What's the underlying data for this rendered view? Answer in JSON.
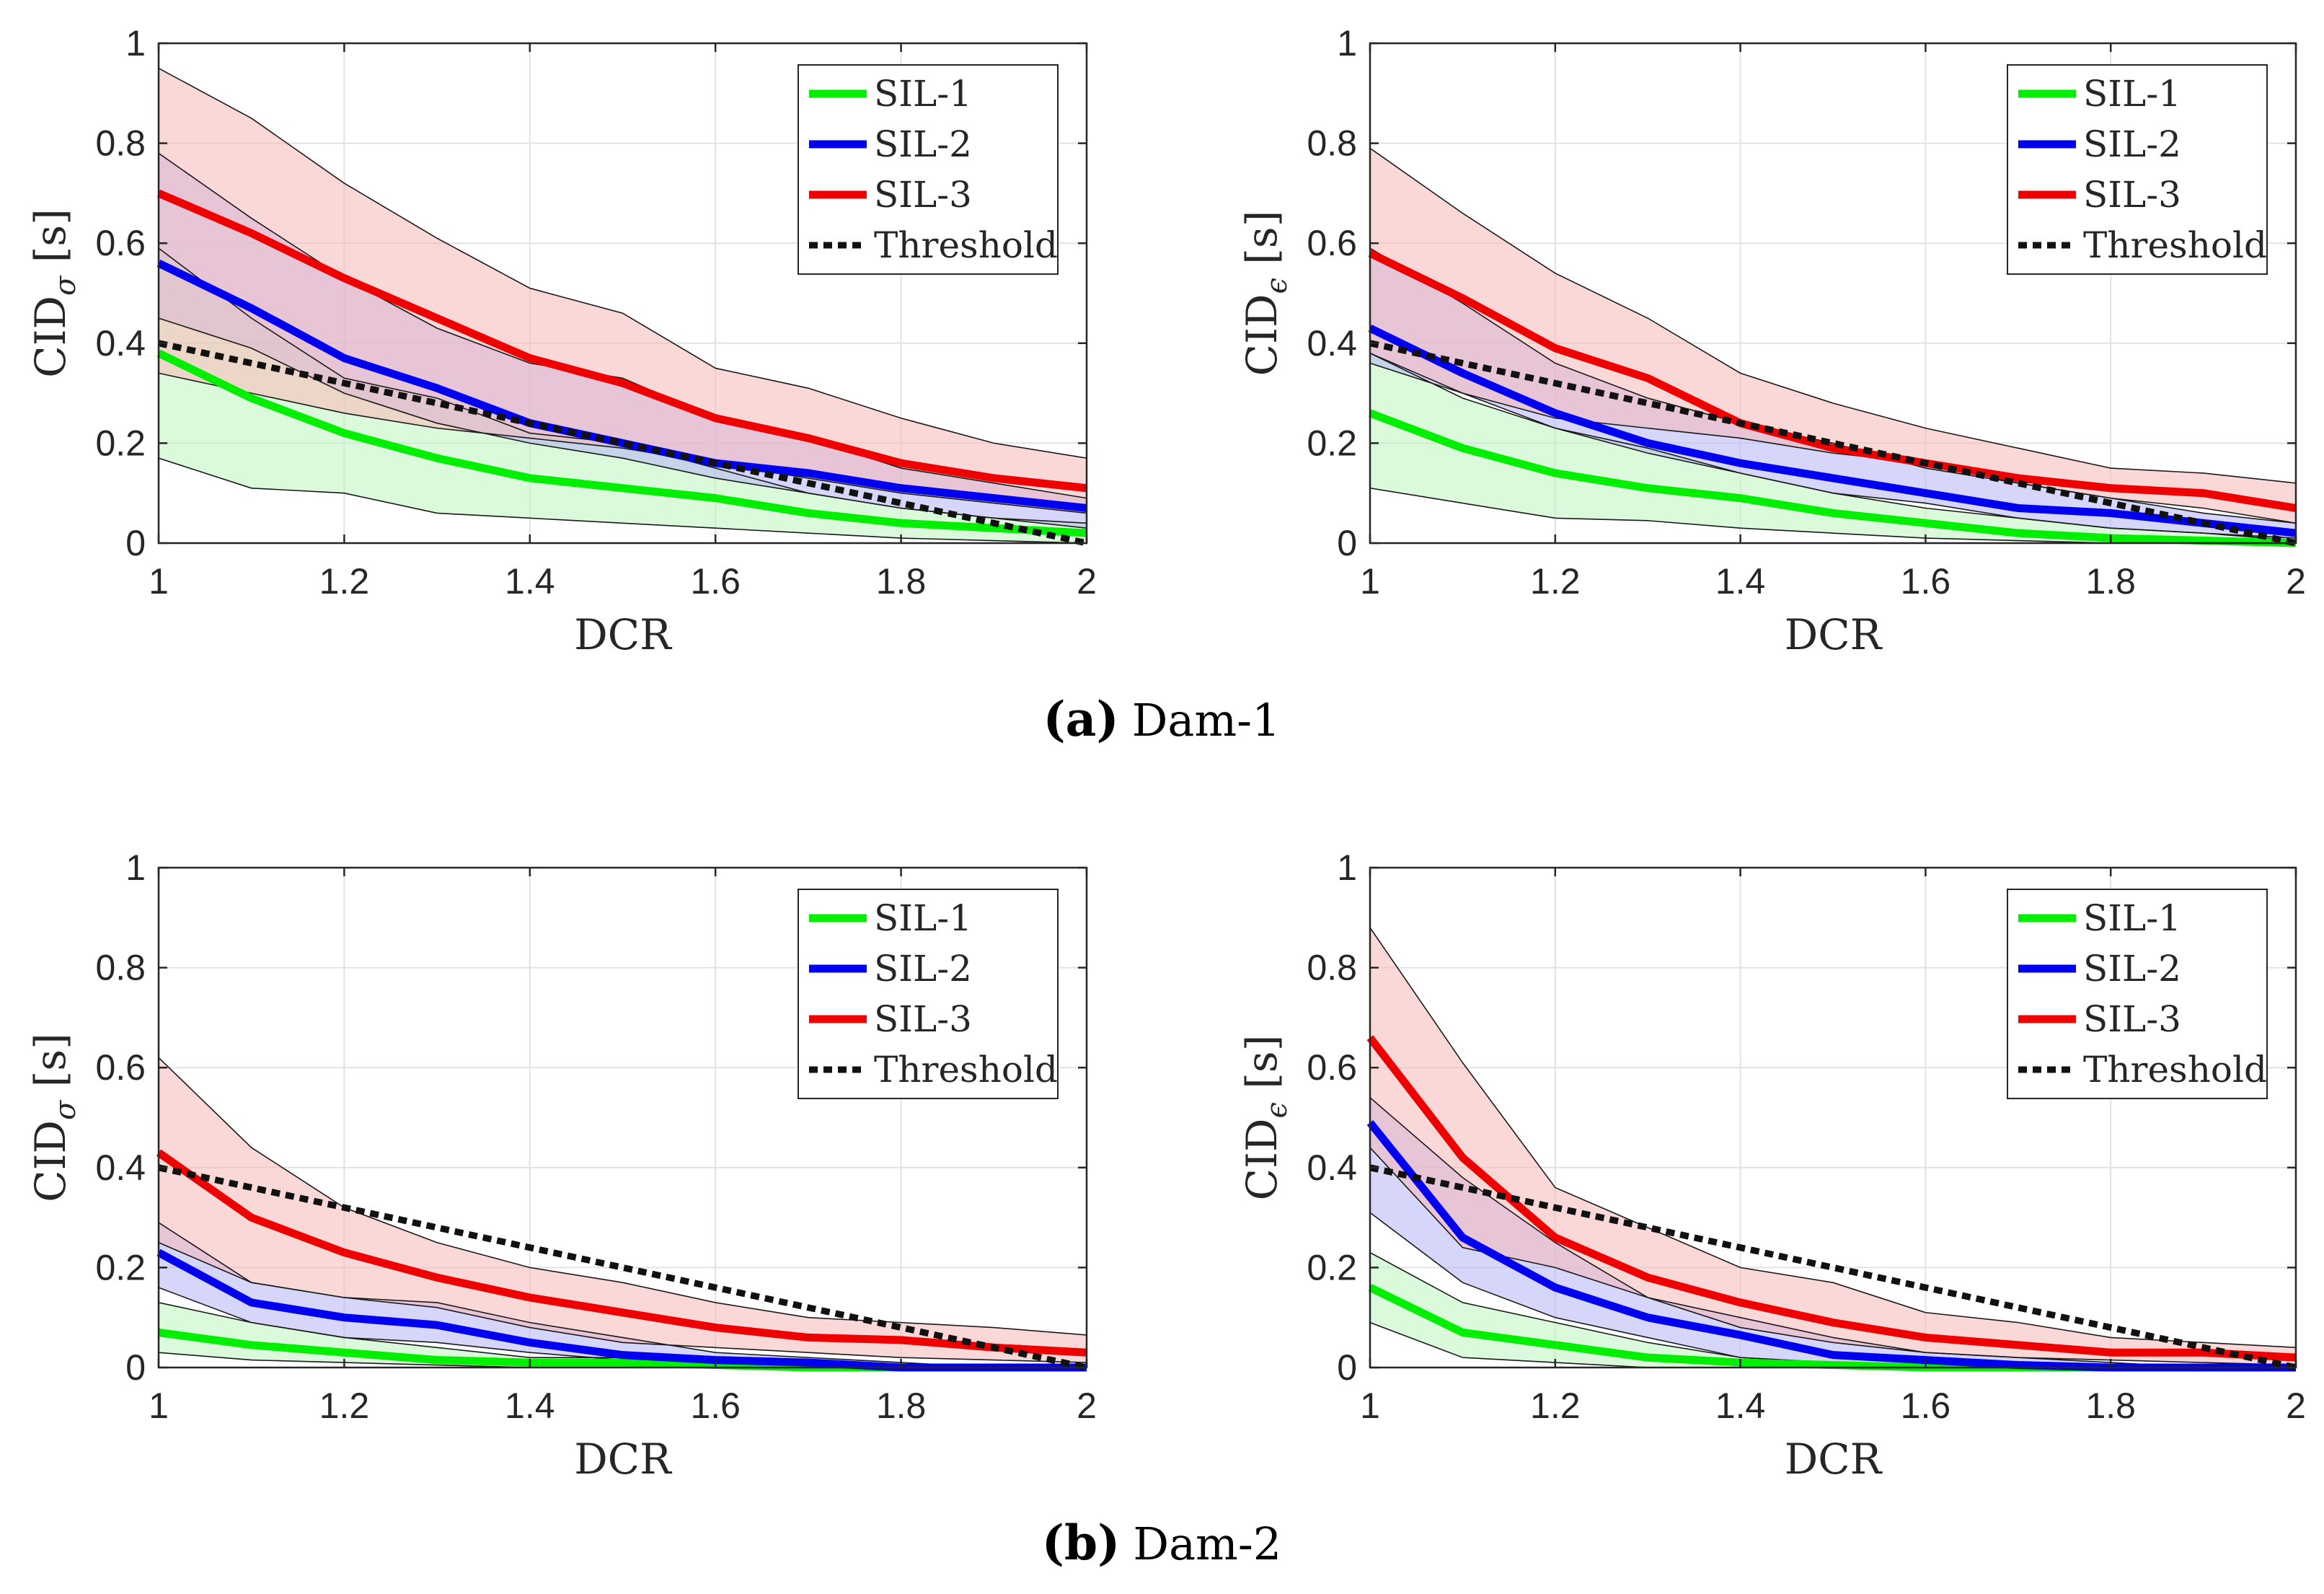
{
  "captions": [
    {
      "label": "(a)",
      "text": "Dam-1"
    },
    {
      "label": "(b)",
      "text": "Dam-2"
    }
  ],
  "colors": {
    "SIL-1": "#00ee00",
    "SIL-2": "#0000ee",
    "SIL-3": "#ee0000",
    "Threshold": "#111111",
    "fill_SIL-1": "#bdf5bd",
    "fill_SIL-2": "#b4b4f5",
    "fill_SIL-3": "#f8b8b8"
  },
  "chart_data": [
    {
      "type": "line",
      "panel": "Dam-1 left",
      "xlabel": "DCR",
      "ylabel": "CID",
      "ylabel_sub": "σ",
      "ylabel_unit": " [s]",
      "xlim": [
        1,
        2
      ],
      "ylim": [
        0,
        1
      ],
      "xticks": [
        "1",
        "1.2",
        "1.4",
        "1.6",
        "1.8",
        "2"
      ],
      "yticks": [
        "0",
        "0.2",
        "0.4",
        "0.6",
        "0.8",
        "1"
      ],
      "grid": true,
      "legend": {
        "position": "top-right",
        "entries": [
          "SIL-1",
          "SIL-2",
          "SIL-3",
          "Threshold"
        ]
      },
      "x": [
        1,
        1.1,
        1.2,
        1.3,
        1.4,
        1.5,
        1.6,
        1.7,
        1.8,
        1.9,
        2
      ],
      "series": [
        {
          "name": "SIL-1",
          "values": [
            0.38,
            0.29,
            0.22,
            0.17,
            0.13,
            0.11,
            0.09,
            0.06,
            0.04,
            0.03,
            0.02
          ],
          "lower": [
            0.17,
            0.11,
            0.1,
            0.06,
            0.05,
            0.04,
            0.03,
            0.02,
            0.01,
            0.005,
            0.0
          ],
          "upper": [
            0.59,
            0.45,
            0.33,
            0.29,
            0.22,
            0.2,
            0.15,
            0.1,
            0.07,
            0.05,
            0.04
          ]
        },
        {
          "name": "SIL-2",
          "values": [
            0.56,
            0.47,
            0.37,
            0.31,
            0.24,
            0.2,
            0.16,
            0.14,
            0.11,
            0.09,
            0.07
          ],
          "lower": [
            0.45,
            0.39,
            0.3,
            0.24,
            0.2,
            0.17,
            0.13,
            0.1,
            0.07,
            0.05,
            0.03
          ],
          "upper": [
            0.78,
            0.65,
            0.53,
            0.43,
            0.36,
            0.33,
            0.25,
            0.21,
            0.15,
            0.12,
            0.09
          ]
        },
        {
          "name": "SIL-3",
          "values": [
            0.7,
            0.62,
            0.53,
            0.45,
            0.37,
            0.32,
            0.25,
            0.21,
            0.16,
            0.13,
            0.11
          ],
          "lower": [
            0.34,
            0.3,
            0.26,
            0.23,
            0.21,
            0.19,
            0.16,
            0.13,
            0.1,
            0.08,
            0.06
          ],
          "upper": [
            0.95,
            0.85,
            0.72,
            0.61,
            0.51,
            0.46,
            0.35,
            0.31,
            0.25,
            0.2,
            0.17
          ]
        },
        {
          "name": "Threshold",
          "values": [
            0.4,
            0.36,
            0.32,
            0.28,
            0.24,
            0.2,
            0.16,
            0.12,
            0.08,
            0.04,
            0.0
          ]
        }
      ]
    },
    {
      "type": "line",
      "panel": "Dam-1 right",
      "xlabel": "DCR",
      "ylabel": "CID",
      "ylabel_sub": "ϵ",
      "ylabel_unit": " [s]",
      "xlim": [
        1,
        2
      ],
      "ylim": [
        0,
        1
      ],
      "xticks": [
        "1",
        "1.2",
        "1.4",
        "1.6",
        "1.8",
        "2"
      ],
      "yticks": [
        "0",
        "0.2",
        "0.4",
        "0.6",
        "0.8",
        "1"
      ],
      "grid": true,
      "legend": {
        "position": "top-right",
        "entries": [
          "SIL-1",
          "SIL-2",
          "SIL-3",
          "Threshold"
        ]
      },
      "x": [
        1,
        1.1,
        1.2,
        1.3,
        1.4,
        1.5,
        1.6,
        1.7,
        1.8,
        1.9,
        2
      ],
      "series": [
        {
          "name": "SIL-1",
          "values": [
            0.26,
            0.19,
            0.14,
            0.11,
            0.09,
            0.06,
            0.04,
            0.02,
            0.01,
            0.005,
            0.0
          ],
          "lower": [
            0.11,
            0.08,
            0.05,
            0.045,
            0.03,
            0.02,
            0.01,
            0.005,
            0.0,
            0.0,
            0.0
          ],
          "upper": [
            0.38,
            0.29,
            0.23,
            0.19,
            0.14,
            0.1,
            0.07,
            0.05,
            0.03,
            0.02,
            0.01
          ]
        },
        {
          "name": "SIL-2",
          "values": [
            0.43,
            0.34,
            0.26,
            0.2,
            0.16,
            0.13,
            0.1,
            0.07,
            0.06,
            0.04,
            0.02
          ],
          "lower": [
            0.36,
            0.3,
            0.23,
            0.18,
            0.14,
            0.1,
            0.08,
            0.05,
            0.03,
            0.02,
            0.005
          ],
          "upper": [
            0.59,
            0.48,
            0.36,
            0.29,
            0.24,
            0.2,
            0.15,
            0.12,
            0.09,
            0.06,
            0.04
          ]
        },
        {
          "name": "SIL-3",
          "values": [
            0.58,
            0.49,
            0.39,
            0.33,
            0.24,
            0.19,
            0.16,
            0.13,
            0.11,
            0.1,
            0.07
          ],
          "lower": [
            0.38,
            0.3,
            0.25,
            0.23,
            0.21,
            0.18,
            0.16,
            0.12,
            0.09,
            0.07,
            0.04
          ],
          "upper": [
            0.79,
            0.66,
            0.54,
            0.45,
            0.34,
            0.28,
            0.23,
            0.19,
            0.15,
            0.14,
            0.12
          ]
        },
        {
          "name": "Threshold",
          "values": [
            0.4,
            0.36,
            0.32,
            0.28,
            0.24,
            0.2,
            0.16,
            0.12,
            0.08,
            0.04,
            0.0
          ]
        }
      ]
    },
    {
      "type": "line",
      "panel": "Dam-2 left",
      "xlabel": "DCR",
      "ylabel": "CID",
      "ylabel_sub": "σ",
      "ylabel_unit": " [s]",
      "xlim": [
        1,
        2
      ],
      "ylim": [
        0,
        1
      ],
      "xticks": [
        "1",
        "1.2",
        "1.4",
        "1.6",
        "1.8",
        "2"
      ],
      "yticks": [
        "0",
        "0.2",
        "0.4",
        "0.6",
        "0.8",
        "1"
      ],
      "grid": true,
      "legend": {
        "position": "top-right",
        "entries": [
          "SIL-1",
          "SIL-2",
          "SIL-3",
          "Threshold"
        ]
      },
      "x": [
        1,
        1.1,
        1.2,
        1.3,
        1.4,
        1.5,
        1.6,
        1.7,
        1.8,
        1.9,
        2
      ],
      "series": [
        {
          "name": "SIL-1",
          "values": [
            0.07,
            0.045,
            0.03,
            0.015,
            0.01,
            0.01,
            0.005,
            0.0,
            0.0,
            0.0,
            0.0
          ],
          "lower": [
            0.03,
            0.015,
            0.01,
            0.005,
            0.0,
            0.0,
            0.0,
            0.0,
            0.0,
            0.0,
            0.0
          ],
          "upper": [
            0.13,
            0.09,
            0.06,
            0.04,
            0.02,
            0.02,
            0.01,
            0.005,
            0.0,
            0.0,
            0.0
          ]
        },
        {
          "name": "SIL-2",
          "values": [
            0.23,
            0.13,
            0.1,
            0.085,
            0.05,
            0.025,
            0.015,
            0.01,
            0.0,
            0.0,
            0.0
          ],
          "lower": [
            0.16,
            0.09,
            0.06,
            0.05,
            0.03,
            0.015,
            0.01,
            0.0,
            0.0,
            0.0,
            0.0
          ],
          "upper": [
            0.29,
            0.17,
            0.14,
            0.13,
            0.09,
            0.06,
            0.03,
            0.02,
            0.01,
            0.0,
            0.0
          ]
        },
        {
          "name": "SIL-3",
          "values": [
            0.43,
            0.3,
            0.23,
            0.18,
            0.14,
            0.11,
            0.08,
            0.06,
            0.055,
            0.04,
            0.03
          ],
          "lower": [
            0.25,
            0.17,
            0.14,
            0.12,
            0.08,
            0.05,
            0.04,
            0.03,
            0.02,
            0.015,
            0.01
          ],
          "upper": [
            0.62,
            0.44,
            0.32,
            0.25,
            0.2,
            0.17,
            0.13,
            0.1,
            0.09,
            0.08,
            0.065
          ]
        },
        {
          "name": "Threshold",
          "values": [
            0.4,
            0.36,
            0.32,
            0.28,
            0.24,
            0.2,
            0.16,
            0.12,
            0.08,
            0.04,
            0.0
          ]
        }
      ]
    },
    {
      "type": "line",
      "panel": "Dam-2 right",
      "xlabel": "DCR",
      "ylabel": "CID",
      "ylabel_sub": "ϵ",
      "ylabel_unit": " [s]",
      "xlim": [
        1,
        2
      ],
      "ylim": [
        0,
        1
      ],
      "xticks": [
        "1",
        "1.2",
        "1.4",
        "1.6",
        "1.8",
        "2"
      ],
      "yticks": [
        "0",
        "0.2",
        "0.4",
        "0.6",
        "0.8",
        "1"
      ],
      "grid": true,
      "legend": {
        "position": "top-right",
        "entries": [
          "SIL-1",
          "SIL-2",
          "SIL-3",
          "Threshold"
        ]
      },
      "x": [
        1,
        1.1,
        1.2,
        1.3,
        1.4,
        1.5,
        1.6,
        1.7,
        1.8,
        1.9,
        2
      ],
      "series": [
        {
          "name": "SIL-1",
          "values": [
            0.16,
            0.07,
            0.045,
            0.02,
            0.01,
            0.005,
            0.0,
            0.0,
            0.0,
            0.0,
            0.0
          ],
          "lower": [
            0.09,
            0.02,
            0.01,
            0.0,
            0.0,
            0.0,
            0.0,
            0.0,
            0.0,
            0.0,
            0.0
          ],
          "upper": [
            0.23,
            0.13,
            0.09,
            0.05,
            0.02,
            0.01,
            0.005,
            0.0,
            0.0,
            0.0,
            0.0
          ]
        },
        {
          "name": "SIL-2",
          "values": [
            0.49,
            0.26,
            0.16,
            0.1,
            0.065,
            0.025,
            0.015,
            0.005,
            0.0,
            0.0,
            0.0
          ],
          "lower": [
            0.31,
            0.17,
            0.1,
            0.06,
            0.02,
            0.01,
            0.0,
            0.0,
            0.0,
            0.0,
            0.0
          ],
          "upper": [
            0.54,
            0.38,
            0.25,
            0.14,
            0.1,
            0.06,
            0.03,
            0.02,
            0.01,
            0.0,
            0.0
          ]
        },
        {
          "name": "SIL-3",
          "values": [
            0.66,
            0.42,
            0.26,
            0.18,
            0.13,
            0.09,
            0.06,
            0.045,
            0.03,
            0.03,
            0.02
          ],
          "lower": [
            0.44,
            0.24,
            0.2,
            0.14,
            0.08,
            0.05,
            0.03,
            0.02,
            0.015,
            0.01,
            0.005
          ],
          "upper": [
            0.88,
            0.61,
            0.36,
            0.28,
            0.2,
            0.17,
            0.11,
            0.09,
            0.06,
            0.05,
            0.04
          ]
        },
        {
          "name": "Threshold",
          "values": [
            0.4,
            0.36,
            0.32,
            0.28,
            0.24,
            0.2,
            0.16,
            0.12,
            0.08,
            0.04,
            0.0
          ]
        }
      ]
    }
  ]
}
